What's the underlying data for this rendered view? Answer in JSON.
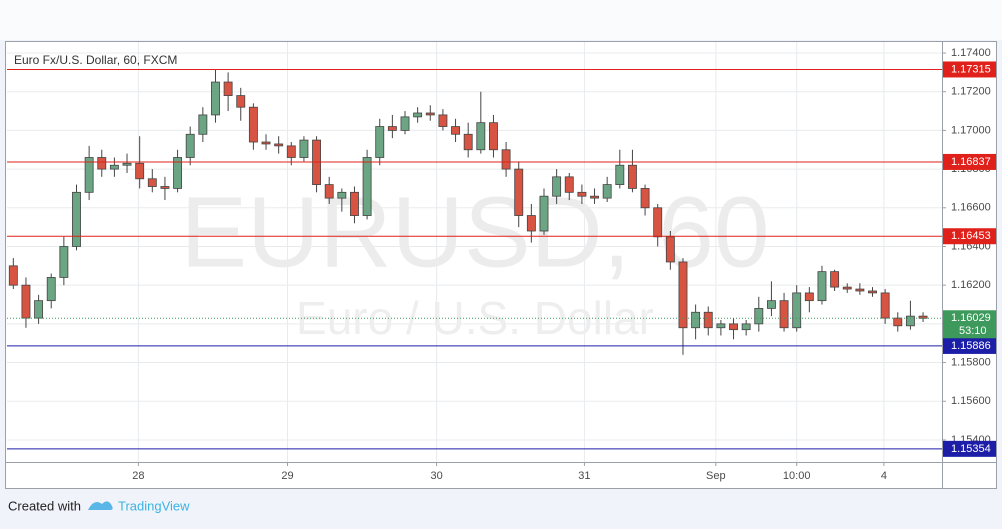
{
  "chart_data": {
    "type": "candlestick",
    "title": "Euro Fx/U.S. Dollar, 60, FXCM",
    "watermark": "EURUSD, 60",
    "watermark_subtitle": "Euro / U.S. Dollar",
    "open": [
      1.163,
      1.162,
      1.1603,
      1.1612,
      1.1624,
      1.164,
      1.1668,
      1.1686,
      1.168,
      1.1682,
      1.1683,
      1.1675,
      1.1671,
      1.167,
      1.1686,
      1.1698,
      1.1708,
      1.1725,
      1.1718,
      1.1712,
      1.1694,
      1.1693,
      1.1692,
      1.1686,
      1.1695,
      1.1672,
      1.1665,
      1.1668,
      1.1656,
      1.1686,
      1.1702,
      1.17,
      1.1707,
      1.1709,
      1.1708,
      1.1702,
      1.1698,
      1.169,
      1.1704,
      1.169,
      1.168,
      1.1656,
      1.1648,
      1.1666,
      1.1676,
      1.1668,
      1.1666,
      1.1665,
      1.1672,
      1.1682,
      1.167,
      1.166,
      1.1645,
      1.1632,
      1.1598,
      1.1606,
      1.1598,
      1.16,
      1.1597,
      1.16,
      1.1608,
      1.1612,
      1.1598,
      1.1616,
      1.1612,
      1.1627,
      1.1619,
      1.1618,
      1.1617,
      1.1616,
      1.1603,
      1.1599,
      1.1604
    ],
    "high": [
      1.1634,
      1.1624,
      1.1615,
      1.1626,
      1.1645,
      1.1672,
      1.1692,
      1.169,
      1.1686,
      1.1688,
      1.1697,
      1.168,
      1.1676,
      1.169,
      1.1702,
      1.1712,
      1.17315,
      1.173,
      1.1722,
      1.1714,
      1.1698,
      1.1697,
      1.1694,
      1.1697,
      1.1697,
      1.1676,
      1.167,
      1.1671,
      1.169,
      1.1706,
      1.1708,
      1.171,
      1.1712,
      1.1713,
      1.1711,
      1.1706,
      1.1704,
      1.172,
      1.1708,
      1.1694,
      1.1684,
      1.1662,
      1.167,
      1.168,
      1.1678,
      1.1672,
      1.167,
      1.1676,
      1.169,
      1.169,
      1.1672,
      1.1662,
      1.1648,
      1.1634,
      1.161,
      1.1609,
      1.1602,
      1.1603,
      1.1602,
      1.1614,
      1.1622,
      1.1616,
      1.162,
      1.1619,
      1.163,
      1.1628,
      1.1621,
      1.1621,
      1.1619,
      1.1618,
      1.1606,
      1.1612,
      1.1606
    ],
    "low": [
      1.1618,
      1.1598,
      1.16,
      1.1608,
      1.162,
      1.1638,
      1.1664,
      1.1676,
      1.1676,
      1.1678,
      1.167,
      1.1668,
      1.1664,
      1.1668,
      1.1682,
      1.1694,
      1.1704,
      1.171,
      1.1705,
      1.169,
      1.169,
      1.1688,
      1.1682,
      1.1684,
      1.1668,
      1.1662,
      1.1658,
      1.1652,
      1.1654,
      1.1682,
      1.1696,
      1.1698,
      1.1704,
      1.1705,
      1.17,
      1.1694,
      1.1686,
      1.1688,
      1.1686,
      1.1676,
      1.165,
      1.1642,
      1.1646,
      1.1662,
      1.1664,
      1.1662,
      1.1662,
      1.1663,
      1.167,
      1.1668,
      1.1656,
      1.164,
      1.1628,
      1.1584,
      1.1592,
      1.1594,
      1.1594,
      1.1592,
      1.1594,
      1.1596,
      1.1604,
      1.1596,
      1.1596,
      1.1606,
      1.161,
      1.1617,
      1.1616,
      1.1615,
      1.1614,
      1.16,
      1.1596,
      1.1597,
      1.1601
    ],
    "close": [
      1.162,
      1.1603,
      1.1612,
      1.1624,
      1.164,
      1.1668,
      1.1686,
      1.168,
      1.1682,
      1.1683,
      1.1675,
      1.1671,
      1.167,
      1.1686,
      1.1698,
      1.1708,
      1.1725,
      1.1718,
      1.1712,
      1.1694,
      1.1693,
      1.1692,
      1.1686,
      1.1695,
      1.1672,
      1.1665,
      1.1668,
      1.1656,
      1.1686,
      1.1702,
      1.17,
      1.1707,
      1.1709,
      1.1708,
      1.1702,
      1.1698,
      1.169,
      1.1704,
      1.169,
      1.168,
      1.1656,
      1.1648,
      1.1666,
      1.1676,
      1.1668,
      1.1666,
      1.1665,
      1.1672,
      1.1682,
      1.167,
      1.166,
      1.1645,
      1.1632,
      1.1598,
      1.1606,
      1.1598,
      1.16,
      1.1597,
      1.16,
      1.1608,
      1.1612,
      1.1598,
      1.1616,
      1.1612,
      1.1627,
      1.1619,
      1.1618,
      1.1617,
      1.1616,
      1.1603,
      1.1599,
      1.1604,
      1.16029
    ],
    "up_color": "#6ba583",
    "down_color": "#d75442",
    "xlim": [
      0,
      74
    ],
    "xticks": [
      {
        "value": 10.4,
        "label": "28"
      },
      {
        "value": 22.2,
        "label": "29"
      },
      {
        "value": 34.0,
        "label": "30"
      },
      {
        "value": 45.7,
        "label": "31"
      },
      {
        "value": 56.1,
        "label": "Sep"
      },
      {
        "value": 62.5,
        "label": "10:00"
      },
      {
        "value": 69.4,
        "label": "4"
      }
    ],
    "ylim": [
      1.15286,
      1.17457
    ],
    "yticks": [
      {
        "value": 1.174,
        "label": "1.17400"
      },
      {
        "value": 1.172,
        "label": "1.17200"
      },
      {
        "value": 1.17,
        "label": "1.17000"
      },
      {
        "value": 1.168,
        "label": "1.16800"
      },
      {
        "value": 1.166,
        "label": "1.16600"
      },
      {
        "value": 1.164,
        "label": "1.16400"
      },
      {
        "value": 1.162,
        "label": "1.16200"
      },
      {
        "value": 1.16,
        "label": "1.16000"
      },
      {
        "value": 1.158,
        "label": "1.15800"
      },
      {
        "value": 1.156,
        "label": "1.15600"
      },
      {
        "value": 1.154,
        "label": "1.15400"
      }
    ],
    "grid": true,
    "levels": [
      {
        "value": 1.17315,
        "color": "#e0201b"
      },
      {
        "value": 1.16837,
        "color": "#e0201b"
      },
      {
        "value": 1.16453,
        "color": "#e0201b"
      },
      {
        "value": 1.15886,
        "color": "#1d1ea8"
      },
      {
        "value": 1.15354,
        "color": "#1d1ea8"
      }
    ],
    "last_price": 1.16029,
    "last_color": "#3d9a5c",
    "countdown": "53:10"
  },
  "footer": {
    "text": "Created with",
    "brand": "TradingView"
  }
}
